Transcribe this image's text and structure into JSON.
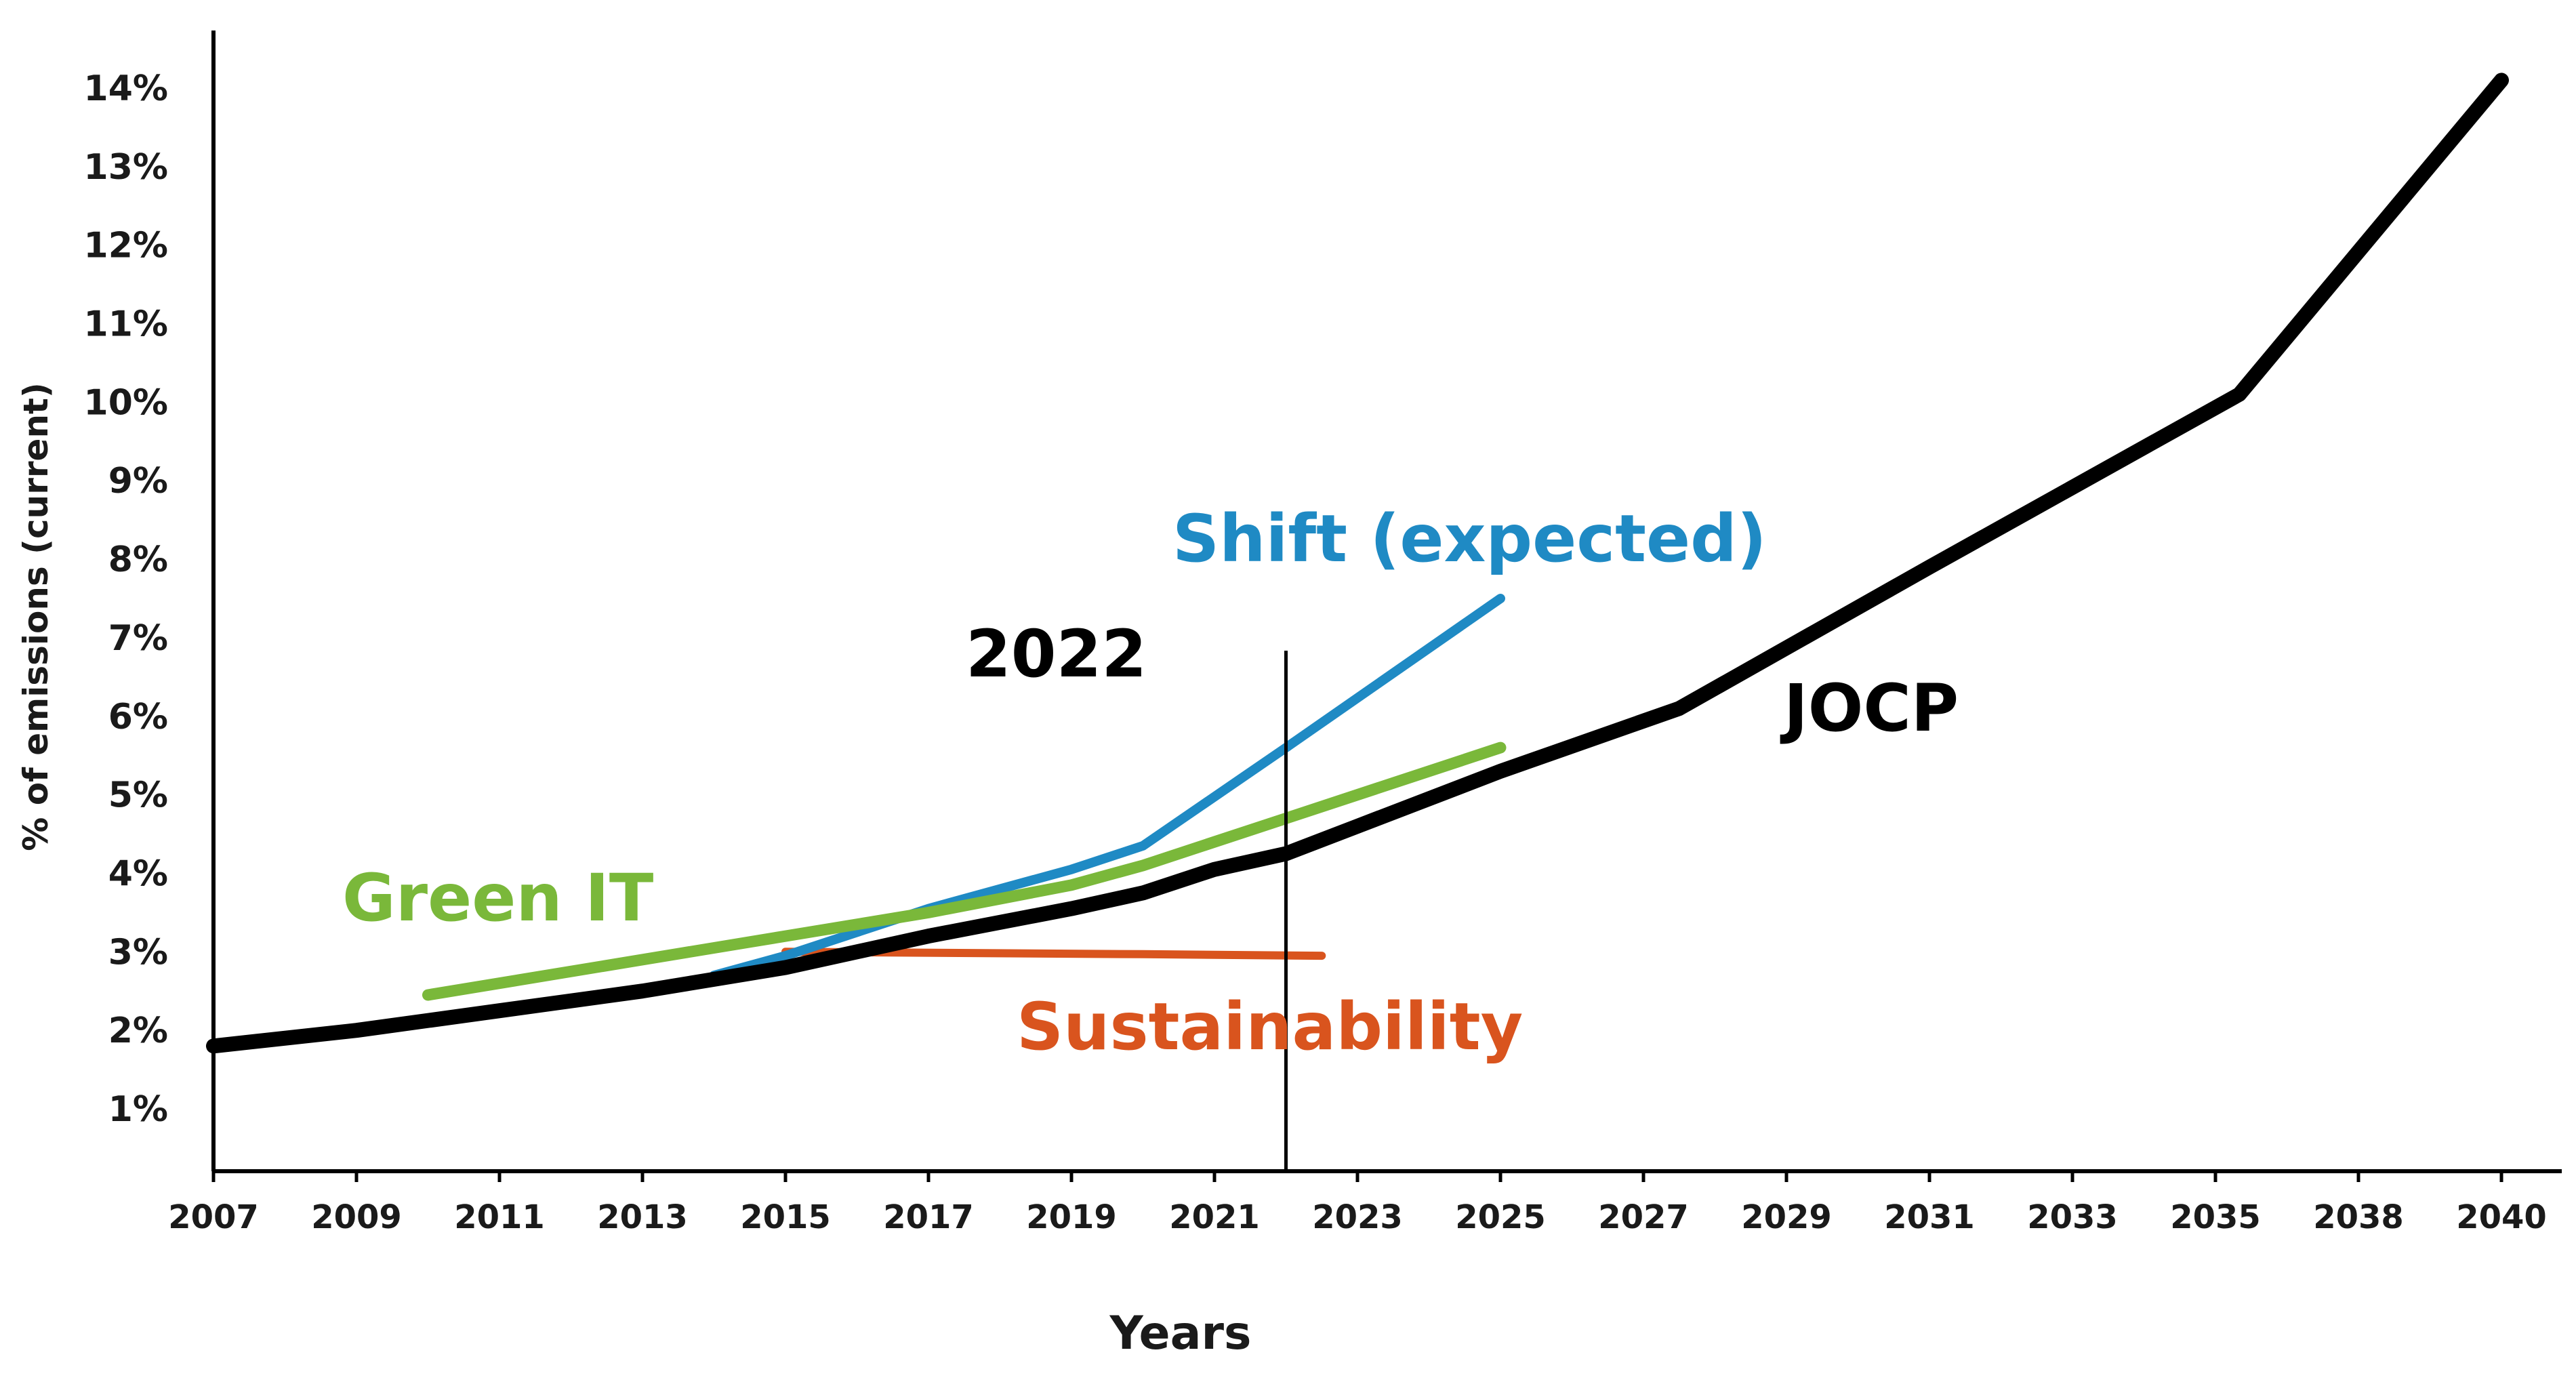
{
  "chart_data": {
    "type": "line",
    "title": "",
    "xlabel": "Years",
    "ylabel": "% of emissions (current)",
    "categories": [
      "2007",
      "2009",
      "2011",
      "2013",
      "2015",
      "2017",
      "2019",
      "2021",
      "2023",
      "2025",
      "2027",
      "2029",
      "2031",
      "2033",
      "2035",
      "2038",
      "2040"
    ],
    "y_ticks": [
      "1%",
      "2%",
      "3%",
      "4%",
      "5%",
      "6%",
      "7%",
      "8%",
      "9%",
      "10%",
      "11%",
      "12%",
      "13%",
      "14%"
    ],
    "ylim": [
      0.3,
      14.8
    ],
    "grid": false,
    "marker": {
      "year": 2022,
      "label": "2022"
    },
    "series": [
      {
        "name": "JOCP",
        "color": "#000000",
        "points": [
          [
            2007,
            1.8
          ],
          [
            2009,
            2.0
          ],
          [
            2011,
            2.25
          ],
          [
            2013,
            2.5
          ],
          [
            2015,
            2.8
          ],
          [
            2017,
            3.2
          ],
          [
            2019,
            3.55
          ],
          [
            2020,
            3.75
          ],
          [
            2021,
            4.05
          ],
          [
            2022,
            4.25
          ],
          [
            2023,
            4.6
          ],
          [
            2025,
            5.3
          ],
          [
            2027.5,
            6.1
          ],
          [
            2031,
            7.9
          ],
          [
            2035.5,
            10.1
          ],
          [
            2040,
            14.1
          ]
        ]
      },
      {
        "name": "Shift (expected)",
        "color": "#1f8ac4",
        "points": [
          [
            2014,
            2.7
          ],
          [
            2015,
            2.95
          ],
          [
            2017,
            3.55
          ],
          [
            2019,
            4.05
          ],
          [
            2020,
            4.35
          ],
          [
            2022,
            5.6
          ],
          [
            2025,
            7.5
          ]
        ]
      },
      {
        "name": "Green IT",
        "color": "#7ab83a",
        "points": [
          [
            2010,
            2.45
          ],
          [
            2013,
            2.9
          ],
          [
            2015,
            3.2
          ],
          [
            2017,
            3.5
          ],
          [
            2019,
            3.85
          ],
          [
            2020,
            4.1
          ],
          [
            2022,
            4.7
          ],
          [
            2025,
            5.6
          ]
        ]
      },
      {
        "name": "Sustainability",
        "color": "#d9541e",
        "points": [
          [
            2015,
            3.0
          ],
          [
            2020,
            2.97
          ],
          [
            2022.5,
            2.95
          ]
        ]
      }
    ],
    "annotations": [
      {
        "text": "Shift (expected)",
        "series": "Shift (expected)"
      },
      {
        "text": "Green IT",
        "series": "Green IT"
      },
      {
        "text": "Sustainability",
        "series": "Sustainability"
      },
      {
        "text": "JOCP",
        "series": "JOCP"
      },
      {
        "text": "2022",
        "series": "marker"
      }
    ]
  }
}
